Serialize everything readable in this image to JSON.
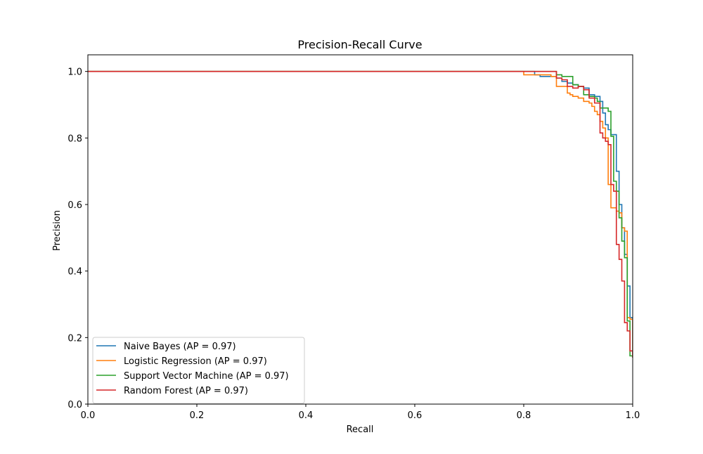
{
  "chart_data": {
    "type": "line",
    "title": "Precision-Recall Curve",
    "xlabel": "Recall",
    "ylabel": "Precision",
    "xlim": [
      0.0,
      1.0
    ],
    "ylim": [
      0.0,
      1.05
    ],
    "xticks": [
      0.0,
      0.2,
      0.4,
      0.6,
      0.8,
      1.0
    ],
    "yticks": [
      0.0,
      0.2,
      0.4,
      0.6,
      0.8,
      1.0
    ],
    "xtick_labels": [
      "0.0",
      "0.2",
      "0.4",
      "0.6",
      "0.8",
      "1.0"
    ],
    "ytick_labels": [
      "0.0",
      "0.2",
      "0.4",
      "0.6",
      "0.8",
      "1.0"
    ],
    "grid": false,
    "legend_position": "lower-left",
    "step": "post",
    "series": [
      {
        "name": "Naive Bayes (AP = 0.97)",
        "color": "#1f77b4",
        "recall": [
          0.0,
          0.8,
          0.82,
          0.83,
          0.86,
          0.87,
          0.88,
          0.89,
          0.9,
          0.91,
          0.92,
          0.93,
          0.94,
          0.945,
          0.95,
          0.955,
          0.96,
          0.97,
          0.975,
          0.98,
          0.985,
          0.99,
          0.995,
          1.0
        ],
        "precision": [
          1.0,
          1.0,
          0.99,
          0.985,
          0.98,
          0.97,
          0.965,
          0.96,
          0.955,
          0.95,
          0.93,
          0.925,
          0.91,
          0.875,
          0.84,
          0.825,
          0.81,
          0.7,
          0.6,
          0.53,
          0.45,
          0.355,
          0.26,
          0.14
        ]
      },
      {
        "name": "Logistic Regression (AP = 0.97)",
        "color": "#ff7f0e",
        "recall": [
          0.0,
          0.8,
          0.82,
          0.85,
          0.86,
          0.875,
          0.88,
          0.885,
          0.89,
          0.9,
          0.91,
          0.92,
          0.925,
          0.93,
          0.935,
          0.94,
          0.945,
          0.95,
          0.955,
          0.96,
          0.965,
          0.97,
          0.975,
          0.98,
          0.985,
          0.99,
          0.995,
          1.0
        ],
        "precision": [
          1.0,
          0.99,
          0.99,
          0.985,
          0.955,
          0.955,
          0.935,
          0.93,
          0.925,
          0.92,
          0.91,
          0.905,
          0.895,
          0.88,
          0.87,
          0.85,
          0.83,
          0.8,
          0.66,
          0.59,
          0.59,
          0.58,
          0.575,
          0.53,
          0.52,
          0.26,
          0.255,
          0.14
        ]
      },
      {
        "name": "Support Vector Machine (AP = 0.97)",
        "color": "#2ca02c",
        "recall": [
          0.0,
          0.86,
          0.87,
          0.89,
          0.9,
          0.91,
          0.92,
          0.93,
          0.935,
          0.94,
          0.95,
          0.955,
          0.96,
          0.965,
          0.97,
          0.975,
          0.98,
          0.985,
          0.99,
          0.995,
          1.0
        ],
        "precision": [
          1.0,
          0.99,
          0.985,
          0.96,
          0.955,
          0.93,
          0.925,
          0.92,
          0.91,
          0.89,
          0.89,
          0.88,
          0.805,
          0.67,
          0.64,
          0.56,
          0.49,
          0.44,
          0.25,
          0.145,
          0.14
        ]
      },
      {
        "name": "Random Forest (AP = 0.97)",
        "color": "#d62728",
        "recall": [
          0.0,
          0.86,
          0.87,
          0.88,
          0.89,
          0.9,
          0.91,
          0.92,
          0.93,
          0.94,
          0.945,
          0.95,
          0.955,
          0.96,
          0.965,
          0.97,
          0.975,
          0.98,
          0.985,
          0.99,
          0.995,
          1.0
        ],
        "precision": [
          1.0,
          0.98,
          0.975,
          0.955,
          0.95,
          0.955,
          0.945,
          0.92,
          0.905,
          0.815,
          0.8,
          0.79,
          0.78,
          0.66,
          0.64,
          0.48,
          0.435,
          0.37,
          0.245,
          0.22,
          0.16,
          0.14
        ]
      }
    ]
  }
}
